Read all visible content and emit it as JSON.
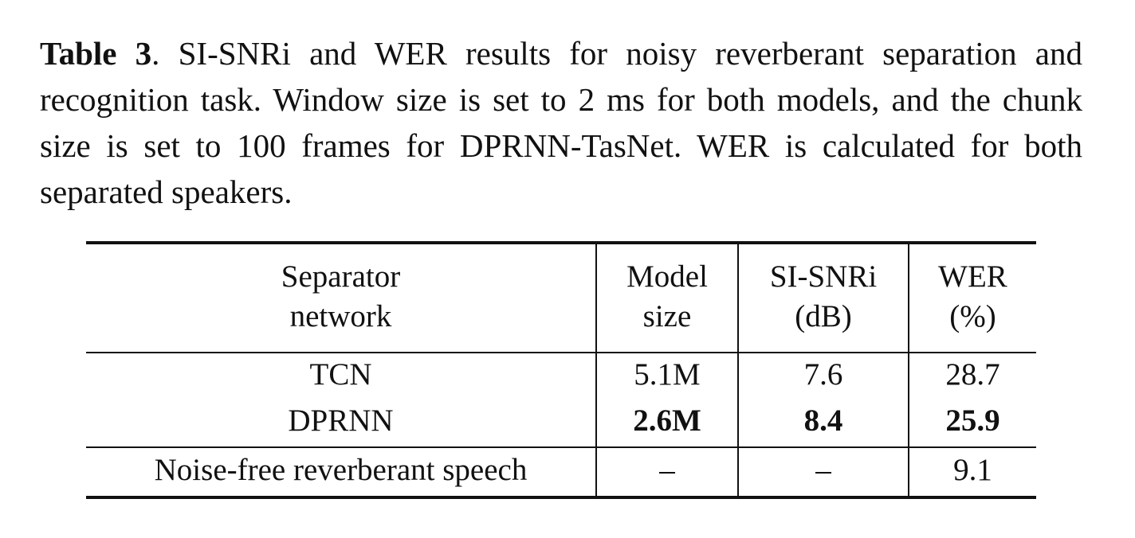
{
  "caption": {
    "label": "Table 3",
    "text": ". SI-SNRi and WER results for noisy reverberant separation and recognition task. Window size is set to 2 ms for both models, and the chunk size is set to 100 frames for DPRNN-TasNet. WER is calculated for both separated speakers."
  },
  "table": {
    "headers": [
      [
        "Separator",
        "network"
      ],
      [
        "Model",
        "size"
      ],
      [
        "SI-SNRi",
        "(dB)"
      ],
      [
        "WER",
        "(%)"
      ]
    ],
    "rows": [
      {
        "name": "TCN",
        "model_size": "5.1M",
        "si_snri": "7.6",
        "wer": "28.7",
        "bold": false
      },
      {
        "name": "DPRNN",
        "model_size": "2.6M",
        "si_snri": "8.4",
        "wer": "25.9",
        "bold": true
      },
      {
        "name": "Noise-free reverberant speech",
        "model_size": "–",
        "si_snri": "–",
        "wer": "9.1",
        "bold": false
      }
    ]
  }
}
